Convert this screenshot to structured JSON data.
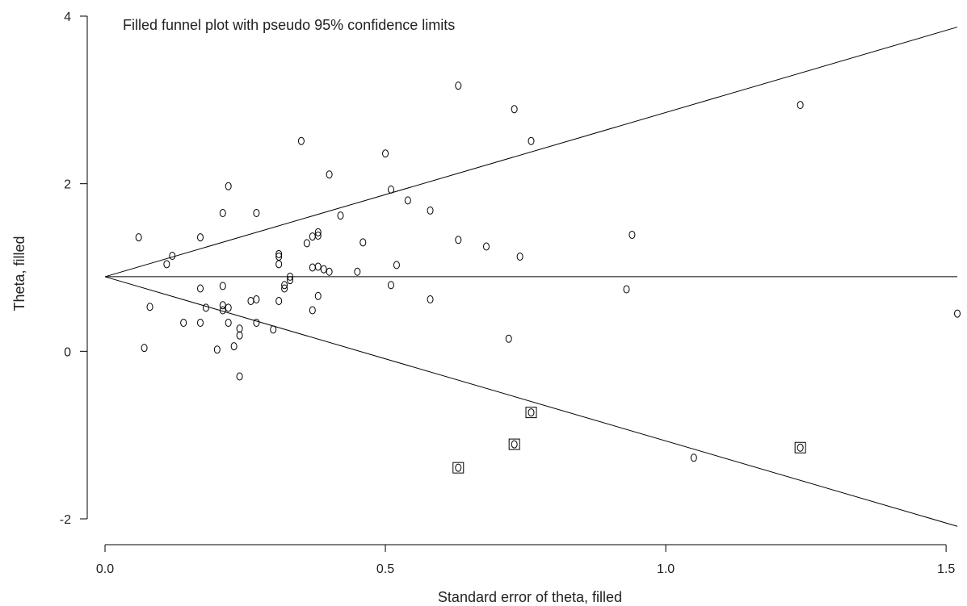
{
  "chart_data": {
    "type": "scatter",
    "title": "Filled funnel plot with pseudo 95% confidence limits",
    "xlabel": "Standard error of theta, filled",
    "ylabel": "Theta, filled",
    "xlim": [
      0,
      1.52
    ],
    "ylim": [
      -2.15,
      4
    ],
    "xticks": [
      "0.0",
      "0.5",
      "1.0",
      "1.5"
    ],
    "xtick_values": [
      0,
      0.5,
      1.0,
      1.5
    ],
    "yticks": [
      "-2",
      "0",
      "2",
      "4"
    ],
    "ytick_values": [
      -2,
      0,
      2,
      4
    ],
    "pooled_estimate": 0.89,
    "confidence_z": 1.96,
    "grid": false,
    "observed_studies": [
      [
        0.06,
        1.36
      ],
      [
        0.07,
        0.04
      ],
      [
        0.08,
        0.53
      ],
      [
        0.11,
        1.04
      ],
      [
        0.12,
        1.14
      ],
      [
        0.14,
        0.34
      ],
      [
        0.17,
        0.75
      ],
      [
        0.17,
        1.36
      ],
      [
        0.17,
        0.34
      ],
      [
        0.18,
        0.52
      ],
      [
        0.2,
        0.02
      ],
      [
        0.21,
        0.55
      ],
      [
        0.21,
        0.78
      ],
      [
        0.21,
        0.49
      ],
      [
        0.21,
        1.65
      ],
      [
        0.22,
        1.97
      ],
      [
        0.22,
        0.52
      ],
      [
        0.22,
        0.34
      ],
      [
        0.23,
        0.06
      ],
      [
        0.24,
        0.27
      ],
      [
        0.24,
        0.19
      ],
      [
        0.24,
        -0.3
      ],
      [
        0.26,
        0.6
      ],
      [
        0.27,
        1.65
      ],
      [
        0.27,
        0.62
      ],
      [
        0.27,
        0.34
      ],
      [
        0.3,
        0.26
      ],
      [
        0.31,
        1.04
      ],
      [
        0.31,
        0.6
      ],
      [
        0.31,
        1.13
      ],
      [
        0.31,
        1.16
      ],
      [
        0.32,
        0.79
      ],
      [
        0.32,
        0.75
      ],
      [
        0.33,
        0.89
      ],
      [
        0.33,
        0.85
      ],
      [
        0.35,
        2.51
      ],
      [
        0.36,
        1.29
      ],
      [
        0.37,
        1.0
      ],
      [
        0.37,
        0.49
      ],
      [
        0.37,
        1.37
      ],
      [
        0.38,
        1.38
      ],
      [
        0.38,
        0.66
      ],
      [
        0.38,
        1.42
      ],
      [
        0.38,
        1.01
      ],
      [
        0.39,
        0.98
      ],
      [
        0.4,
        0.95
      ],
      [
        0.4,
        2.11
      ],
      [
        0.42,
        1.62
      ],
      [
        0.45,
        0.95
      ],
      [
        0.46,
        1.3
      ],
      [
        0.5,
        2.36
      ],
      [
        0.51,
        1.93
      ],
      [
        0.51,
        0.79
      ],
      [
        0.52,
        1.03
      ],
      [
        0.54,
        1.8
      ],
      [
        0.58,
        1.68
      ],
      [
        0.58,
        0.62
      ],
      [
        0.63,
        1.33
      ],
      [
        0.63,
        3.17
      ],
      [
        0.68,
        1.25
      ],
      [
        0.72,
        0.15
      ],
      [
        0.73,
        2.89
      ],
      [
        0.74,
        1.13
      ],
      [
        0.76,
        2.51
      ],
      [
        0.93,
        0.74
      ],
      [
        0.94,
        1.39
      ],
      [
        1.05,
        -1.27
      ],
      [
        1.24,
        2.94
      ],
      [
        1.52,
        0.45
      ]
    ],
    "filled_studies": [
      [
        0.63,
        -1.39
      ],
      [
        0.73,
        -1.11
      ],
      [
        0.76,
        -0.73
      ],
      [
        1.24,
        -1.15
      ]
    ]
  }
}
